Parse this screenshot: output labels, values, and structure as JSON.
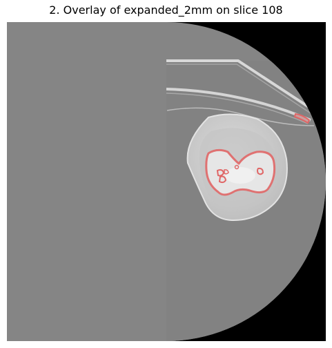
{
  "figure": {
    "title": "2. Overlay of expanded_2mm on slice 108"
  },
  "image": {
    "subject": "CT slice with red contour overlay",
    "colors": {
      "background": "#000000",
      "field_of_view": "#858585",
      "tissue": "#cfcfcf",
      "bone": "#e9e9e9",
      "contour": "#e06666"
    }
  }
}
